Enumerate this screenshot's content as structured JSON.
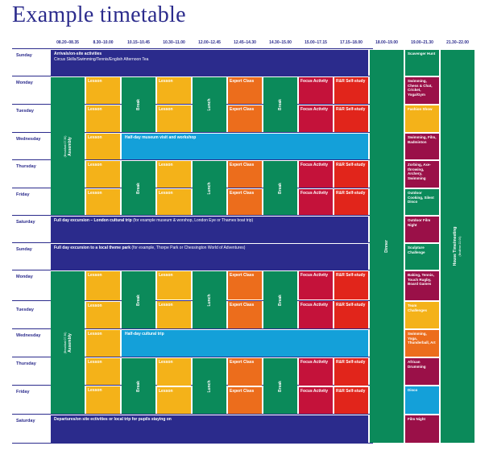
{
  "title": "Example timetable",
  "times": [
    "08.20–08.35",
    "8.30–10.00",
    "10.15–10.45",
    "10.30–11.00",
    "12.00–12.45",
    "12.45–14.30",
    "14.30–15.00",
    "15.00–17.15",
    "17.15–18.00",
    "18.00–19.00",
    "19.00–21.30",
    "21.30–22.00"
  ],
  "days": [
    "Sunday",
    "Monday",
    "Tuesday",
    "Wednesday",
    "Thursday",
    "Friday",
    "Saturday",
    "Sunday",
    "Monday",
    "Tuesday",
    "Wednesday",
    "Thursday",
    "Friday",
    "Saturday"
  ],
  "labels": {
    "lesson": "Lesson",
    "break": "Break",
    "lunch": "Lunch",
    "expert": "Expert Class",
    "focus": "Focus Activity",
    "rr": "R&R Self-study",
    "assembly": "Assembly",
    "breakfast": "(Breakfast 07.30)",
    "dinner": "Dinner",
    "housetime": "House Time/meeting",
    "bedtime": "(Bedtime 22.00)"
  },
  "wide": {
    "arrivals_bold": "Arrivals/on-site activities",
    "arrivals_sub": "Circus Skills/Swimming/Tennis/English Afternoon Tea",
    "museum": "Half-day museum visit and workshop",
    "london_bold": "Full day excursion – London cultural trip",
    "london_rest": " (for example museum & worshop, London Eye or Thames boat trip)",
    "themepark_bold": "Full day excursion to a local theme park",
    "themepark_rest": " (for example, Thorpe Park or Chessington World of Adventures)",
    "cultural": "Half-day cultural trip",
    "departures": "Departures/on site ectivities or local trip for pupils staying on"
  },
  "evening": [
    "Scavenger Hunt",
    "Swimming, Chess & Chat, Cricket, Yoga/Gym",
    "Fashion Show",
    "Swimming, Film, Badminton",
    "Zorbing, Axe-throwing, Archery, Swimming",
    "Outdoor Cooking, Silent Disco",
    "Outdoor Film Night",
    "Sculpture Challenge",
    "Baking, Tennis, Touch Rugby, Board Games",
    "Team Challenges",
    "Swimming, Yoga, Thunderball, Art",
    "African Drumming",
    "Disco",
    "Film Night"
  ],
  "colors": {
    "navy": "#2b2b8c",
    "green": "#0b8a5a",
    "yellow": "#f4b219",
    "orange": "#ec6d1c",
    "crimson": "#c4123a",
    "red": "#e1251b",
    "teal": "#14a0d9",
    "maroon": "#9a1048"
  }
}
